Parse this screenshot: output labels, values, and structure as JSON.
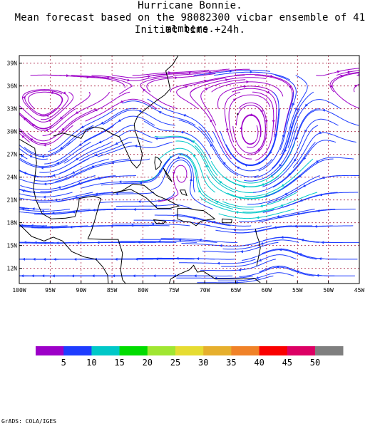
{
  "title": {
    "line1": "Hurricane Bonnie.",
    "line2": "Mean forecast based on the 98082300 vicbar ensemble of 41 members.",
    "line3": "Initial time +24h."
  },
  "map": {
    "lat_ticks": [
      "39N",
      "36N",
      "33N",
      "30N",
      "27N",
      "24N",
      "21N",
      "18N",
      "15N",
      "12N"
    ],
    "lon_ticks": [
      "100W",
      "95W",
      "90W",
      "85W",
      "80W",
      "75W",
      "70W",
      "65W",
      "60W",
      "55W",
      "50W",
      "45W"
    ],
    "frame_color": "#000000",
    "grid_color": "#aa2244",
    "coast_color": "#000000"
  },
  "colorbar": {
    "colors": [
      "#9d00c8",
      "#1e3cff",
      "#00c8c8",
      "#00dc00",
      "#a0e632",
      "#e6dc32",
      "#e6af2d",
      "#f08228",
      "#fa0000",
      "#dc0064",
      "#7f7f7f"
    ],
    "labels": [
      "5",
      "10",
      "15",
      "20",
      "25",
      "30",
      "35",
      "40",
      "45",
      "50"
    ]
  },
  "footer": "GrADS: COLA/IGES"
}
